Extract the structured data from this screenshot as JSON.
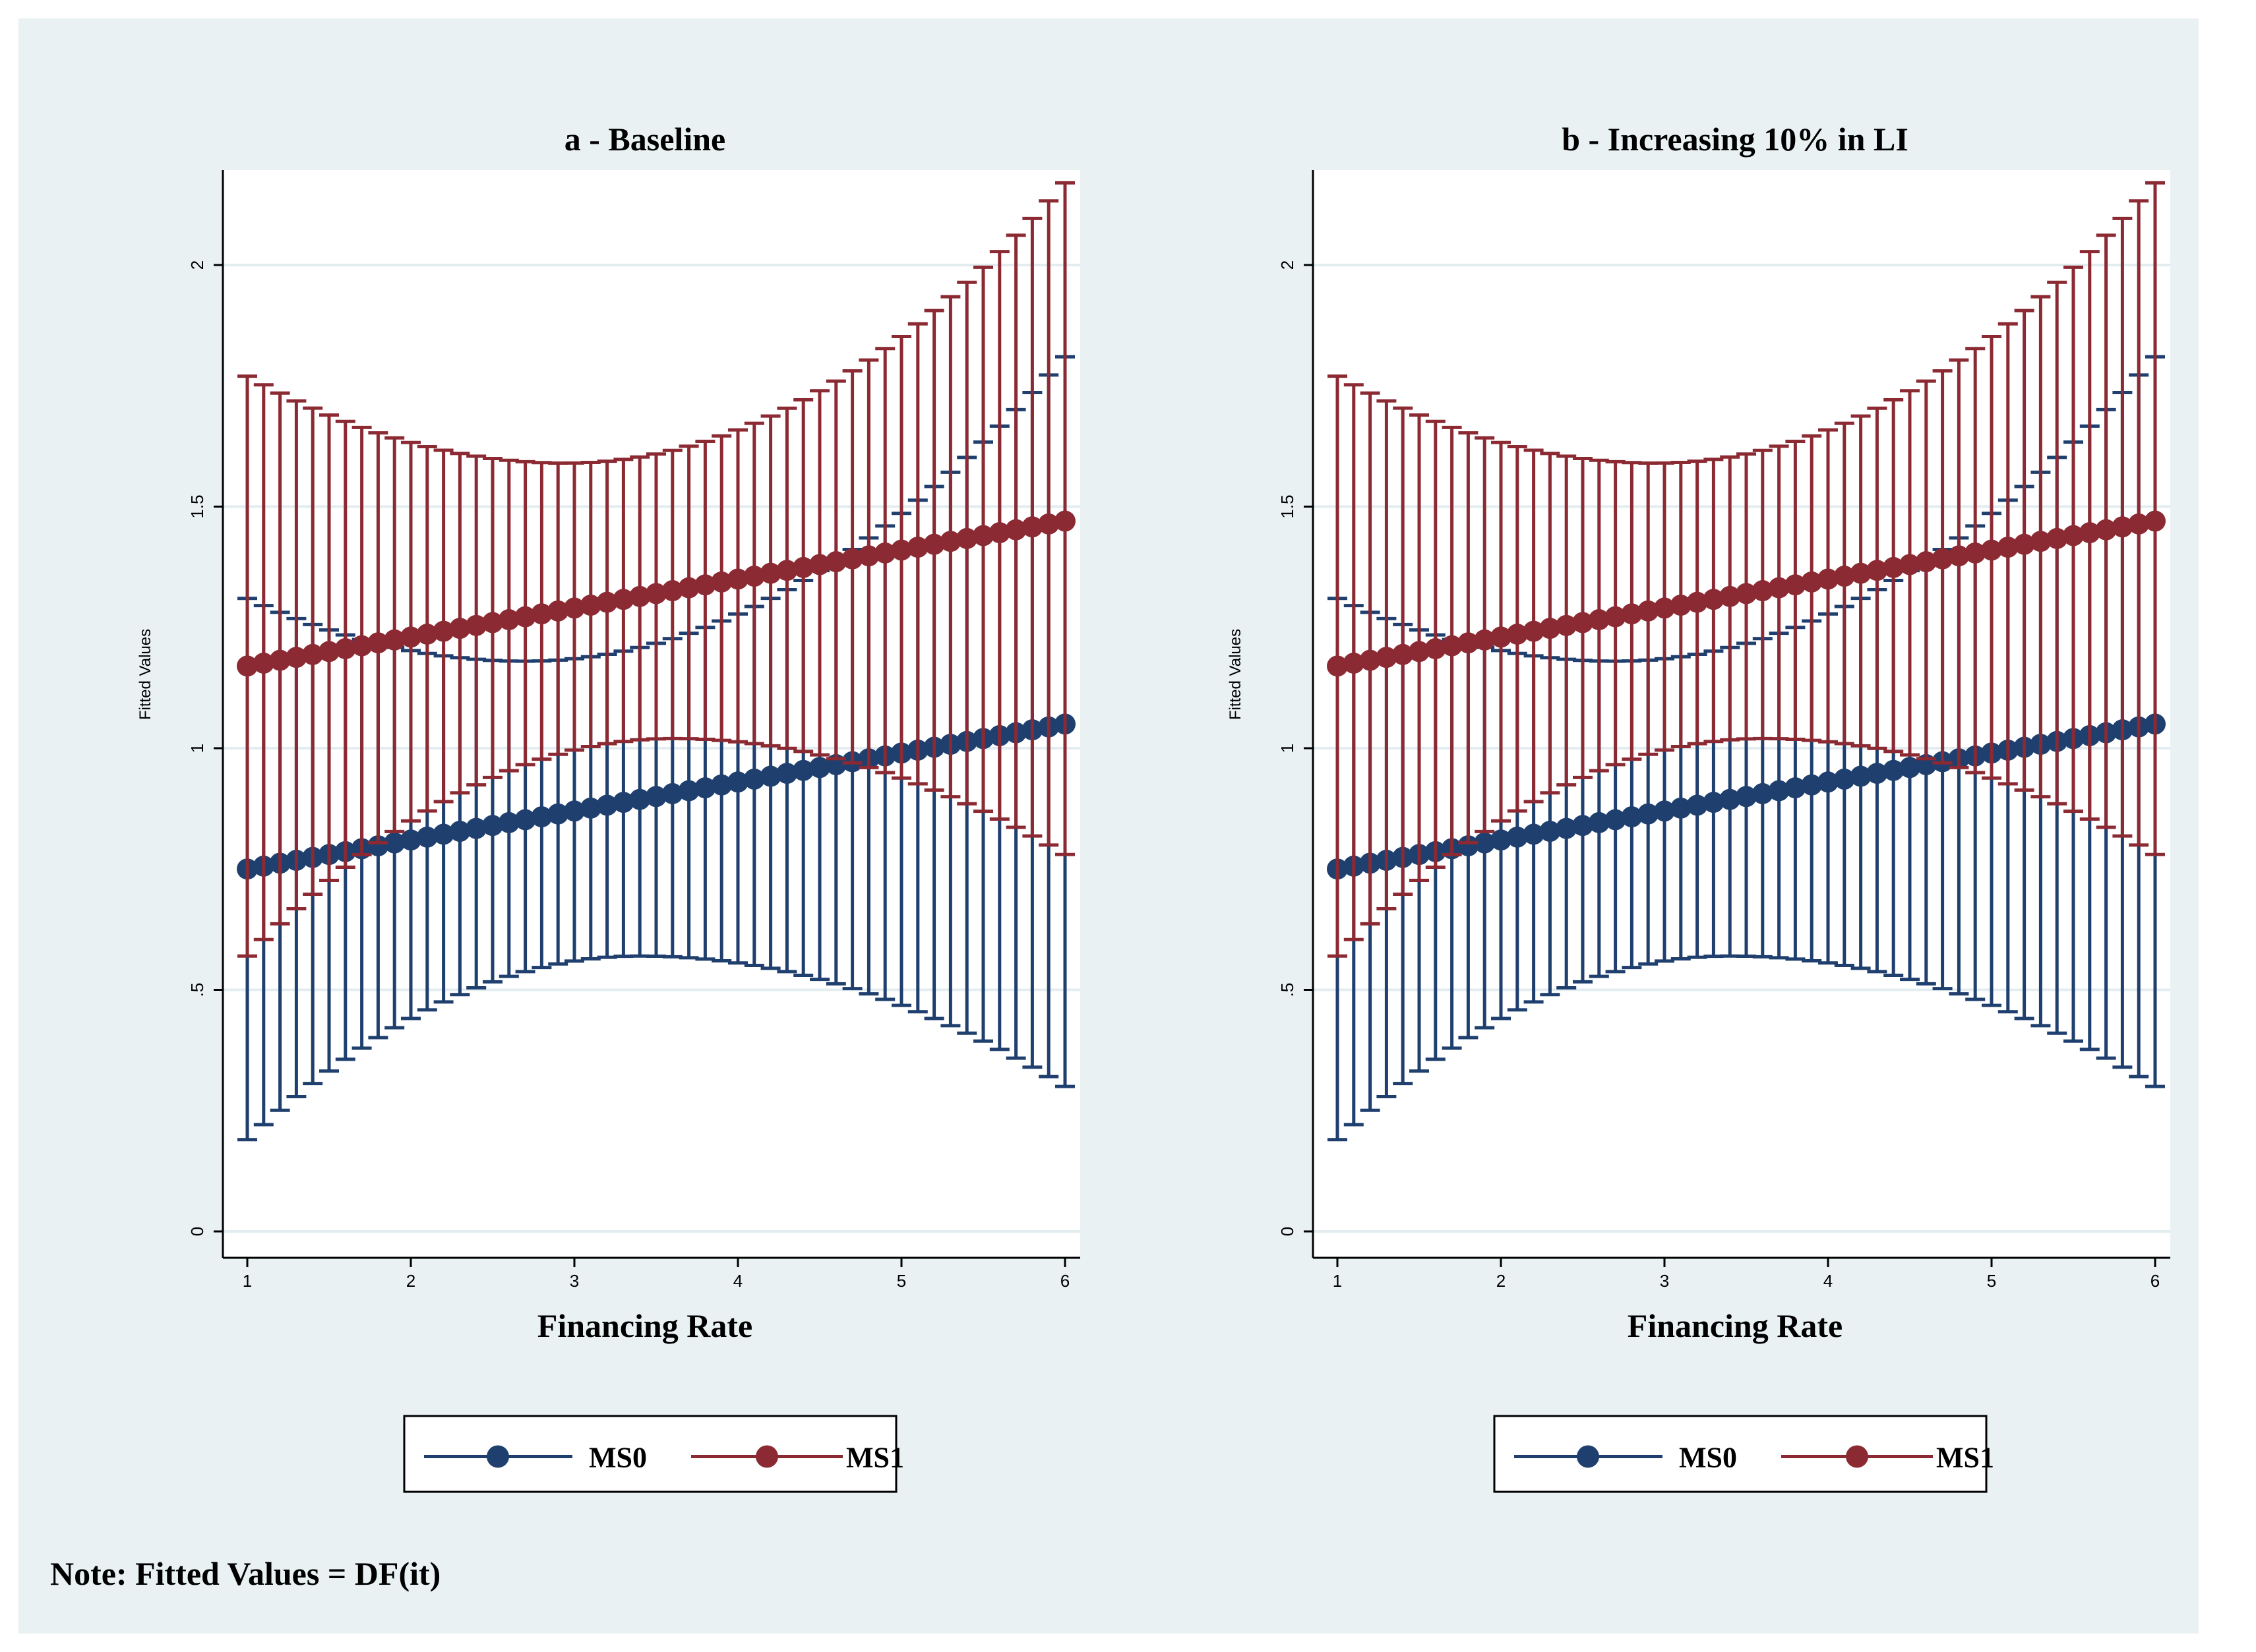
{
  "note": "Note: Fitted Values = DF(it)",
  "colors": {
    "ms0": "#1f3f6e",
    "ms1": "#8c2a33",
    "grid": "#e3edf0",
    "background": "#e9f1f3",
    "plot": "#ffffff"
  },
  "chart_data": [
    {
      "type": "line",
      "title": "a - Baseline",
      "xlabel": "Financing Rate",
      "ylabel": "Fitted Values",
      "xlim": [
        1,
        6
      ],
      "ylim": [
        0,
        2.2
      ],
      "xticks": [
        "1",
        "2",
        "3",
        "4",
        "5",
        "6"
      ],
      "yticks": [
        "0",
        ".5",
        "1",
        "1.5",
        "2"
      ],
      "grid": true,
      "legend": [
        "MS0",
        "MS1"
      ],
      "series": [
        {
          "name": "MS0",
          "x_start": 1,
          "x_end": 6,
          "n_points": 51,
          "fitted_start": 0.75,
          "fitted_end": 1.05,
          "ci_lower_at_ends": [
            0.19,
            0.3
          ],
          "ci_lower_peak": [
            3.4,
            0.57
          ],
          "ci_upper_at_ends": [
            1.31,
            1.81
          ],
          "ci_upper_trough": [
            2.7,
            1.18
          ]
        },
        {
          "name": "MS1",
          "x_start": 1,
          "x_end": 6,
          "n_points": 51,
          "fitted_start": 1.17,
          "fitted_end": 1.47,
          "ci_lower_at_ends": [
            0.57,
            0.78
          ],
          "ci_lower_peak": [
            3.6,
            1.02
          ],
          "ci_upper_at_ends": [
            1.77,
            2.17
          ],
          "ci_upper_trough": [
            2.95,
            1.59
          ]
        }
      ]
    },
    {
      "type": "line",
      "title": "b - Increasing 10% in LI",
      "xlabel": "Financing Rate",
      "ylabel": "Fitted Values",
      "xlim": [
        1,
        6
      ],
      "ylim": [
        0,
        2.2
      ],
      "xticks": [
        "1",
        "2",
        "3",
        "4",
        "5",
        "6"
      ],
      "yticks": [
        "0",
        ".5",
        "1",
        "1.5",
        "2"
      ],
      "grid": true,
      "legend": [
        "MS0",
        "MS1"
      ],
      "series": [
        {
          "name": "MS0",
          "x_start": 1,
          "x_end": 6,
          "n_points": 51,
          "fitted_start": 0.75,
          "fitted_end": 1.05,
          "ci_lower_at_ends": [
            0.19,
            0.3
          ],
          "ci_lower_peak": [
            3.4,
            0.57
          ],
          "ci_upper_at_ends": [
            1.31,
            1.81
          ],
          "ci_upper_trough": [
            2.7,
            1.18
          ]
        },
        {
          "name": "MS1",
          "x_start": 1,
          "x_end": 6,
          "n_points": 51,
          "fitted_start": 1.17,
          "fitted_end": 1.47,
          "ci_lower_at_ends": [
            0.57,
            0.78
          ],
          "ci_lower_peak": [
            3.6,
            1.02
          ],
          "ci_upper_at_ends": [
            1.77,
            2.17
          ],
          "ci_upper_trough": [
            2.95,
            1.59
          ]
        }
      ]
    }
  ]
}
